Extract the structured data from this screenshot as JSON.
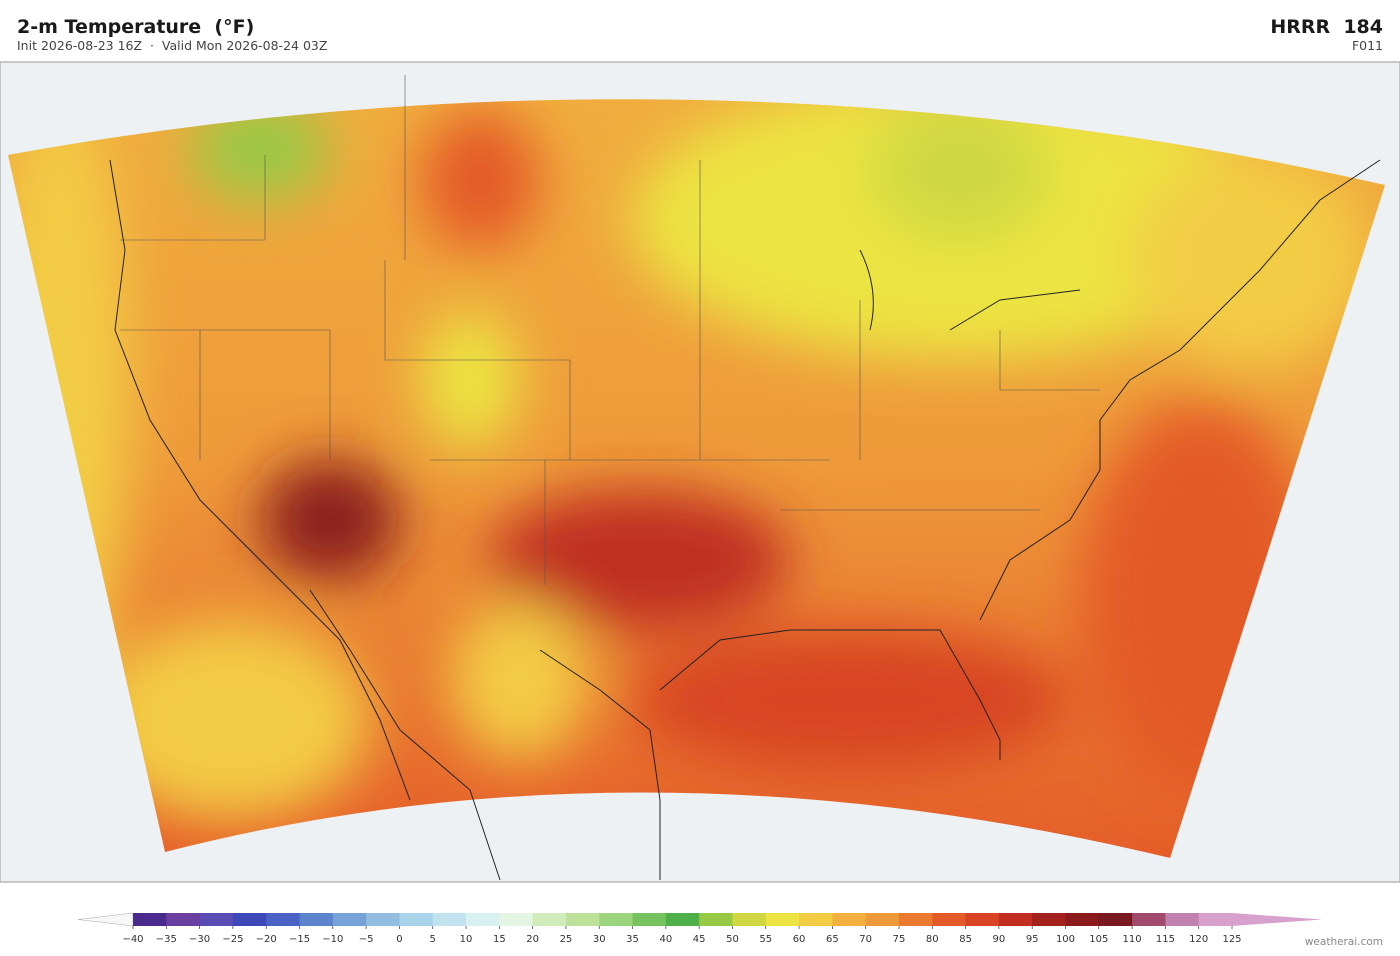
{
  "header": {
    "title": "2-m Temperature  (°F)",
    "subtitle": "Init 2026-08-23 16Z  ·  Valid Mon 2026-08-24 03Z",
    "model": "HRRR  184",
    "forecast_hour": "F011"
  },
  "colorbar": {
    "lim": [
      -40,
      125
    ],
    "ticks": [
      {
        "value": -40,
        "label": "−40"
      },
      {
        "value": -35,
        "label": "−35"
      },
      {
        "value": -30,
        "label": "−30"
      },
      {
        "value": -25,
        "label": "−25"
      },
      {
        "value": -20,
        "label": "−20"
      },
      {
        "value": -15,
        "label": "−15"
      },
      {
        "value": -10,
        "label": "−10"
      },
      {
        "value": -5,
        "label": "−5"
      },
      0,
      5,
      10,
      15,
      20,
      25,
      30,
      35,
      40,
      45,
      50,
      55,
      60,
      65,
      70,
      75,
      80,
      85,
      90,
      95,
      100,
      105,
      110,
      115,
      120,
      125
    ],
    "colors": [
      "#4a2a8c",
      "#6a3fa0",
      "#5b4bb5",
      "#3f48b8",
      "#4a62c4",
      "#5b84cc",
      "#77a2d8",
      "#92bde0",
      "#a8d3e8",
      "#c1e2ee",
      "#d8f0f0",
      "#e4f5e4",
      "#d2ebbd",
      "#bde19a",
      "#9bd47c",
      "#76c25e",
      "#4fb04a",
      "#98c944",
      "#cfd842",
      "#ece442",
      "#f3cc45",
      "#f1b03f",
      "#ee9a3a",
      "#ea7a30",
      "#e45a28",
      "#d84424",
      "#c02f22",
      "#a3221e",
      "#8a1a1c",
      "#7a1820",
      "#a04a6e",
      "#c080b0",
      "#d8a0cc"
    ],
    "under_color": "#f7f7f7",
    "over_color": "#d8a0cc"
  },
  "credit": "weatherai.com"
}
